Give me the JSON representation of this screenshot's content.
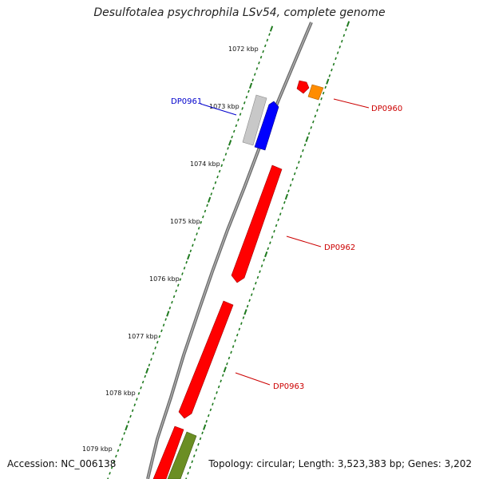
{
  "title": "Desulfotalea psychrophila LSv54, complete genome",
  "accession": "Accession: NC_006138",
  "topology": "Topology: circular; Length: 3,523,383 bp; Genes: 3,202",
  "colors": {
    "backbone": "#7f7f7f",
    "ticks": "#1f7a1f",
    "forward_gene": "#ff0000",
    "reverse_gene": "#0000ff",
    "other_gene": "#ff8c00",
    "grey_gene": "#c0c0c0",
    "olive_gene": "#6b8e23",
    "label_forward": "#cc0000",
    "label_reverse": "#0000cc"
  },
  "scale_labels": [
    "1072 kbp",
    "1073 kbp",
    "1074 kbp",
    "1075 kbp",
    "1076 kbp",
    "1077 kbp",
    "1078 kbp",
    "1079 kbp"
  ],
  "gene_labels": [
    {
      "text": "DP0961",
      "strand": "reverse"
    },
    {
      "text": "DP0960",
      "strand": "forward"
    },
    {
      "text": "DP0962",
      "strand": "forward"
    },
    {
      "text": "DP0963",
      "strand": "forward"
    }
  ]
}
